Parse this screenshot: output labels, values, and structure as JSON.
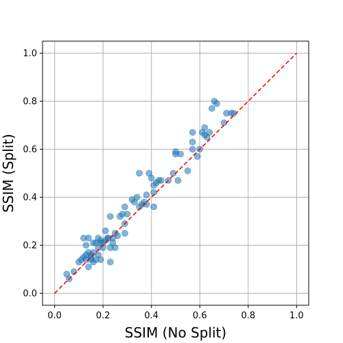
{
  "chart_data": {
    "type": "scatter",
    "title": "",
    "xlabel": "SSIM (No Split)",
    "ylabel": "SSIM (Split)",
    "xlim": [
      -0.05,
      1.05
    ],
    "ylim": [
      -0.05,
      1.05
    ],
    "xticks": [
      "0.0",
      "0.2",
      "0.4",
      "0.6",
      "0.8",
      "1.0"
    ],
    "yticks": [
      "0.0",
      "0.2",
      "0.4",
      "0.6",
      "0.8",
      "1.0"
    ],
    "tick_values": [
      0,
      0.2,
      0.4,
      0.6,
      0.8,
      1.0
    ],
    "grid": true,
    "point_color": "#1f77b4",
    "reference_line": {
      "style": "dashed",
      "color": "#ff0000",
      "from": [
        0,
        0
      ],
      "to": [
        1,
        1
      ]
    },
    "points": [
      [
        0.05,
        0.08
      ],
      [
        0.06,
        0.06
      ],
      [
        0.08,
        0.09
      ],
      [
        0.1,
        0.13
      ],
      [
        0.11,
        0.14
      ],
      [
        0.12,
        0.23
      ],
      [
        0.12,
        0.15
      ],
      [
        0.13,
        0.2
      ],
      [
        0.13,
        0.16
      ],
      [
        0.13,
        0.14
      ],
      [
        0.14,
        0.23
      ],
      [
        0.14,
        0.11
      ],
      [
        0.14,
        0.17
      ],
      [
        0.15,
        0.14
      ],
      [
        0.15,
        0.16
      ],
      [
        0.15,
        0.15
      ],
      [
        0.16,
        0.21
      ],
      [
        0.16,
        0.17
      ],
      [
        0.16,
        0.13
      ],
      [
        0.17,
        0.14
      ],
      [
        0.17,
        0.21
      ],
      [
        0.18,
        0.19
      ],
      [
        0.18,
        0.16
      ],
      [
        0.18,
        0.23
      ],
      [
        0.19,
        0.14
      ],
      [
        0.19,
        0.22
      ],
      [
        0.19,
        0.21
      ],
      [
        0.2,
        0.19
      ],
      [
        0.2,
        0.21
      ],
      [
        0.21,
        0.26
      ],
      [
        0.21,
        0.22
      ],
      [
        0.22,
        0.23
      ],
      [
        0.22,
        0.23
      ],
      [
        0.23,
        0.32
      ],
      [
        0.23,
        0.19
      ],
      [
        0.23,
        0.13
      ],
      [
        0.24,
        0.23
      ],
      [
        0.24,
        0.21
      ],
      [
        0.25,
        0.25
      ],
      [
        0.25,
        0.19
      ],
      [
        0.26,
        0.24
      ],
      [
        0.27,
        0.32
      ],
      [
        0.28,
        0.33
      ],
      [
        0.29,
        0.36
      ],
      [
        0.29,
        0.29
      ],
      [
        0.29,
        0.25
      ],
      [
        0.3,
        0.33
      ],
      [
        0.32,
        0.39
      ],
      [
        0.33,
        0.38
      ],
      [
        0.34,
        0.4
      ],
      [
        0.35,
        0.5
      ],
      [
        0.35,
        0.36
      ],
      [
        0.36,
        0.37
      ],
      [
        0.37,
        0.38
      ],
      [
        0.38,
        0.37
      ],
      [
        0.38,
        0.41
      ],
      [
        0.39,
        0.5
      ],
      [
        0.4,
        0.48
      ],
      [
        0.41,
        0.42
      ],
      [
        0.41,
        0.45
      ],
      [
        0.41,
        0.36
      ],
      [
        0.42,
        0.46
      ],
      [
        0.43,
        0.47
      ],
      [
        0.44,
        0.47
      ],
      [
        0.47,
        0.47
      ],
      [
        0.49,
        0.5
      ],
      [
        0.5,
        0.59
      ],
      [
        0.5,
        0.58
      ],
      [
        0.51,
        0.47
      ],
      [
        0.52,
        0.58
      ],
      [
        0.55,
        0.51
      ],
      [
        0.57,
        0.67
      ],
      [
        0.57,
        0.6
      ],
      [
        0.57,
        0.63
      ],
      [
        0.59,
        0.57
      ],
      [
        0.6,
        0.6
      ],
      [
        0.61,
        0.67
      ],
      [
        0.62,
        0.66
      ],
      [
        0.62,
        0.69
      ],
      [
        0.63,
        0.65
      ],
      [
        0.64,
        0.67
      ],
      [
        0.65,
        0.77
      ],
      [
        0.66,
        0.8
      ],
      [
        0.67,
        0.79
      ],
      [
        0.7,
        0.71
      ],
      [
        0.71,
        0.75
      ],
      [
        0.73,
        0.75
      ],
      [
        0.74,
        0.75
      ]
    ]
  }
}
